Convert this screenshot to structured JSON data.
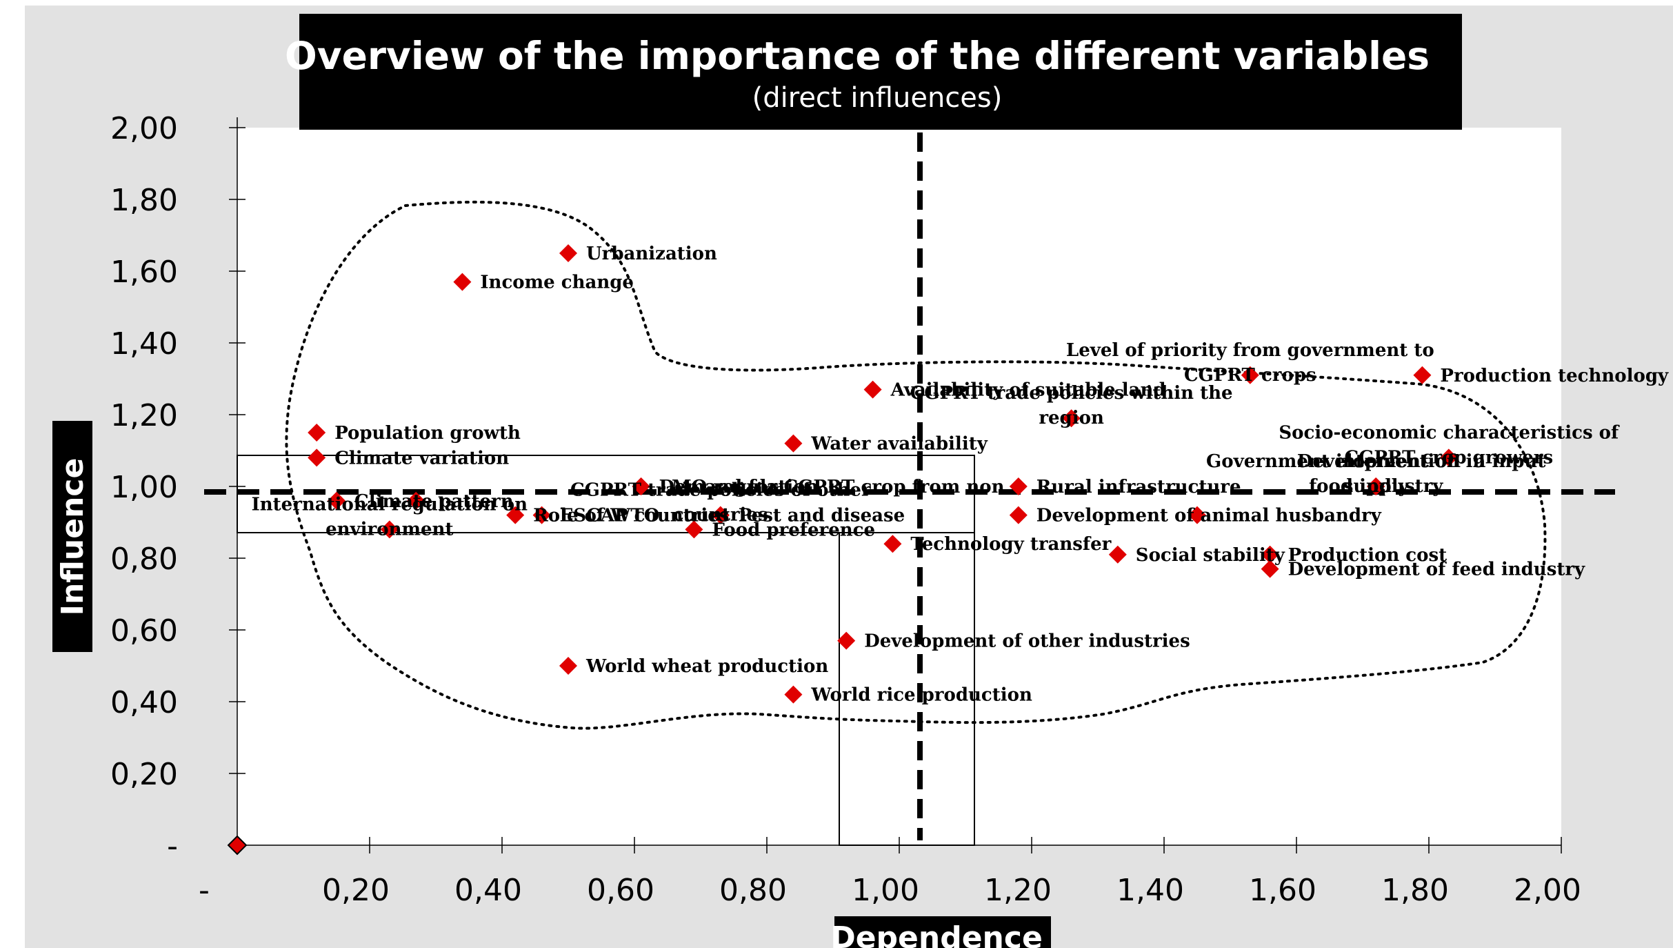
{
  "chart_data": {
    "type": "scatter",
    "title": "Overview of the importance of the different variables",
    "subtitle": "(direct influences)",
    "xlabel": "Dependence",
    "ylabel": "Influence",
    "xlim": [
      0,
      2.0
    ],
    "ylim": [
      0,
      2.0
    ],
    "x_ticks": [
      0,
      0.2,
      0.4,
      0.6,
      0.8,
      1.0,
      1.2,
      1.4,
      1.6,
      1.8,
      2.0
    ],
    "y_ticks": [
      0,
      0.2,
      0.4,
      0.6,
      0.8,
      1.0,
      1.2,
      1.4,
      1.6,
      1.8,
      2.0
    ],
    "x_tick_labels": [
      "-",
      "0,20",
      "0,40",
      "0,60",
      "0,80",
      "1,00",
      "1,20",
      "1,40",
      "1,60",
      "1,80",
      "2,00"
    ],
    "y_tick_labels": [
      "-",
      "0,20",
      "0,40",
      "0,60",
      "0,80",
      "1,00",
      "1,20",
      "1,40",
      "1,60",
      "1,80",
      "2,00"
    ],
    "reference_lines": {
      "x": 1.0,
      "y": 1.0,
      "style": "dashed"
    },
    "grid": false,
    "point_color": "#e00000",
    "points": [
      {
        "label": [
          "Urbanization"
        ],
        "x": 0.5,
        "y": 1.65
      },
      {
        "label": [
          "Income change"
        ],
        "x": 0.34,
        "y": 1.57
      },
      {
        "label": [
          "Population growth"
        ],
        "x": 0.12,
        "y": 1.15
      },
      {
        "label": [
          "Climate variation"
        ],
        "x": 0.12,
        "y": 1.08
      },
      {
        "label": [
          "Demand for CGPRT crop from non"
        ],
        "x": 0.61,
        "y": 1.0
      },
      {
        "label": [
          "LMO regulation"
        ],
        "x": 0.61,
        "y": 1.0
      },
      {
        "label": [
          "ESCAP countries"
        ],
        "x": 0.46,
        "y": 0.92
      },
      {
        "label": [
          "Climate pattern"
        ],
        "x": 0.15,
        "y": 0.96
      },
      {
        "label": [
          "Role of WTO"
        ],
        "x": 0.42,
        "y": 0.92
      },
      {
        "label": [
          "Food preference"
        ],
        "x": 0.69,
        "y": 0.88
      },
      {
        "label": [
          "International regulation on",
          "environment"
        ],
        "x": 0.23,
        "y": 0.88
      },
      {
        "label": [],
        "x": 0.27,
        "y": 0.96
      },
      {
        "label": [
          "Pest and disease"
        ],
        "x": 0.73,
        "y": 0.92
      },
      {
        "label": [
          "CGPRT trade policies of other",
          "countries"
        ],
        "x": 0.73,
        "y": 0.92
      },
      {
        "label": [
          "Water availability"
        ],
        "x": 0.84,
        "y": 1.12
      },
      {
        "label": [
          "Availability of suitable land"
        ],
        "x": 0.96,
        "y": 1.27
      },
      {
        "label": [
          "Technology transfer"
        ],
        "x": 0.99,
        "y": 0.84
      },
      {
        "label": [
          "Development of other industries"
        ],
        "x": 0.92,
        "y": 0.57
      },
      {
        "label": [
          "World wheat production"
        ],
        "x": 0.5,
        "y": 0.5
      },
      {
        "label": [
          "World rice production"
        ],
        "x": 0.84,
        "y": 0.42
      },
      {
        "label": [
          "CGPRT trade policies within the",
          "region"
        ],
        "x": 1.26,
        "y": 1.19
      },
      {
        "label": [
          "Rural infrastructure"
        ],
        "x": 1.18,
        "y": 1.0
      },
      {
        "label": [
          "Development of animal husbandry"
        ],
        "x": 1.18,
        "y": 0.92
      },
      {
        "label": [
          "Social stability"
        ],
        "x": 1.33,
        "y": 0.81
      },
      {
        "label": [],
        "x": 1.45,
        "y": 0.92
      },
      {
        "label": [
          "Level of priority from government to",
          "CGPRT crops"
        ],
        "x": 1.53,
        "y": 1.31
      },
      {
        "label": [
          "Production technology development"
        ],
        "x": 1.79,
        "y": 1.31
      },
      {
        "label": [
          "Development of",
          "food industry"
        ],
        "x": 1.72,
        "y": 1.0
      },
      {
        "label": [
          "Socio-economic characteristics of",
          "CGPRT crop growers"
        ],
        "x": 1.83,
        "y": 1.08
      },
      {
        "label": [
          "Government intervention in input",
          "supply"
        ],
        "x": 1.72,
        "y": 1.0
      },
      {
        "label": [
          "Production cost"
        ],
        "x": 1.56,
        "y": 0.81
      },
      {
        "label": [
          "Development of feed industry"
        ],
        "x": 1.56,
        "y": 0.77
      },
      {
        "label": [],
        "x": 0.0,
        "y": 0.0
      }
    ],
    "label_offsets_note": ""
  }
}
